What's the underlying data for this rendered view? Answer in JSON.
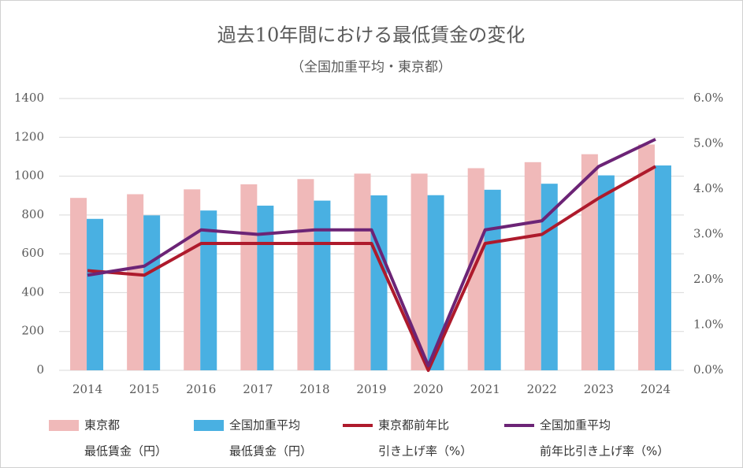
{
  "chart_data": {
    "type": "bar_line",
    "title": "過去10年間における最低賃金の変化",
    "subtitle": "（全国加重平均・東京都）",
    "categories": [
      "2014",
      "2015",
      "2016",
      "2017",
      "2018",
      "2019",
      "2020",
      "2021",
      "2022",
      "2023",
      "2024"
    ],
    "series": [
      {
        "name": [
          "東京都",
          "最低賃金（円）"
        ],
        "type": "bar",
        "color": "#f0b9b9",
        "values": [
          888,
          907,
          932,
          958,
          985,
          1013,
          1013,
          1041,
          1072,
          1113,
          1163
        ]
      },
      {
        "name": [
          "全国加重平均",
          "最低賃金（円）"
        ],
        "type": "bar",
        "color": "#49b0e2",
        "values": [
          780,
          798,
          823,
          848,
          874,
          901,
          902,
          930,
          961,
          1004,
          1055
        ]
      },
      {
        "name": [
          "東京都前年比",
          "引き上げ率（%）"
        ],
        "type": "line",
        "axis": "y2",
        "color": "#ae1a2c",
        "values": [
          2.2,
          2.1,
          2.8,
          2.8,
          2.8,
          2.8,
          0.0,
          2.8,
          3.0,
          3.8,
          4.5
        ]
      },
      {
        "name": [
          "全国加重平均",
          "前年比引き上げ率（%）"
        ],
        "type": "line",
        "axis": "y2",
        "color": "#6c2476",
        "values": [
          2.1,
          2.3,
          3.1,
          3.0,
          3.1,
          3.1,
          0.1,
          3.1,
          3.3,
          4.5,
          5.1
        ]
      }
    ],
    "ylim": [
      0,
      1400
    ],
    "yticks": [
      0,
      200,
      400,
      600,
      800,
      1000,
      1200,
      1400
    ],
    "y2lim": [
      0,
      6
    ],
    "y2ticks": [
      {
        "value": 0,
        "label": "0.0%"
      },
      {
        "value": 1,
        "label": "1.0%"
      },
      {
        "value": 2,
        "label": "2.0%"
      },
      {
        "value": 3,
        "label": "3.0%"
      },
      {
        "value": 4,
        "label": "4.0%"
      },
      {
        "value": 5,
        "label": "5.0%"
      },
      {
        "value": 6,
        "label": "6.0%"
      }
    ],
    "grid": true,
    "legend": "bottom"
  }
}
